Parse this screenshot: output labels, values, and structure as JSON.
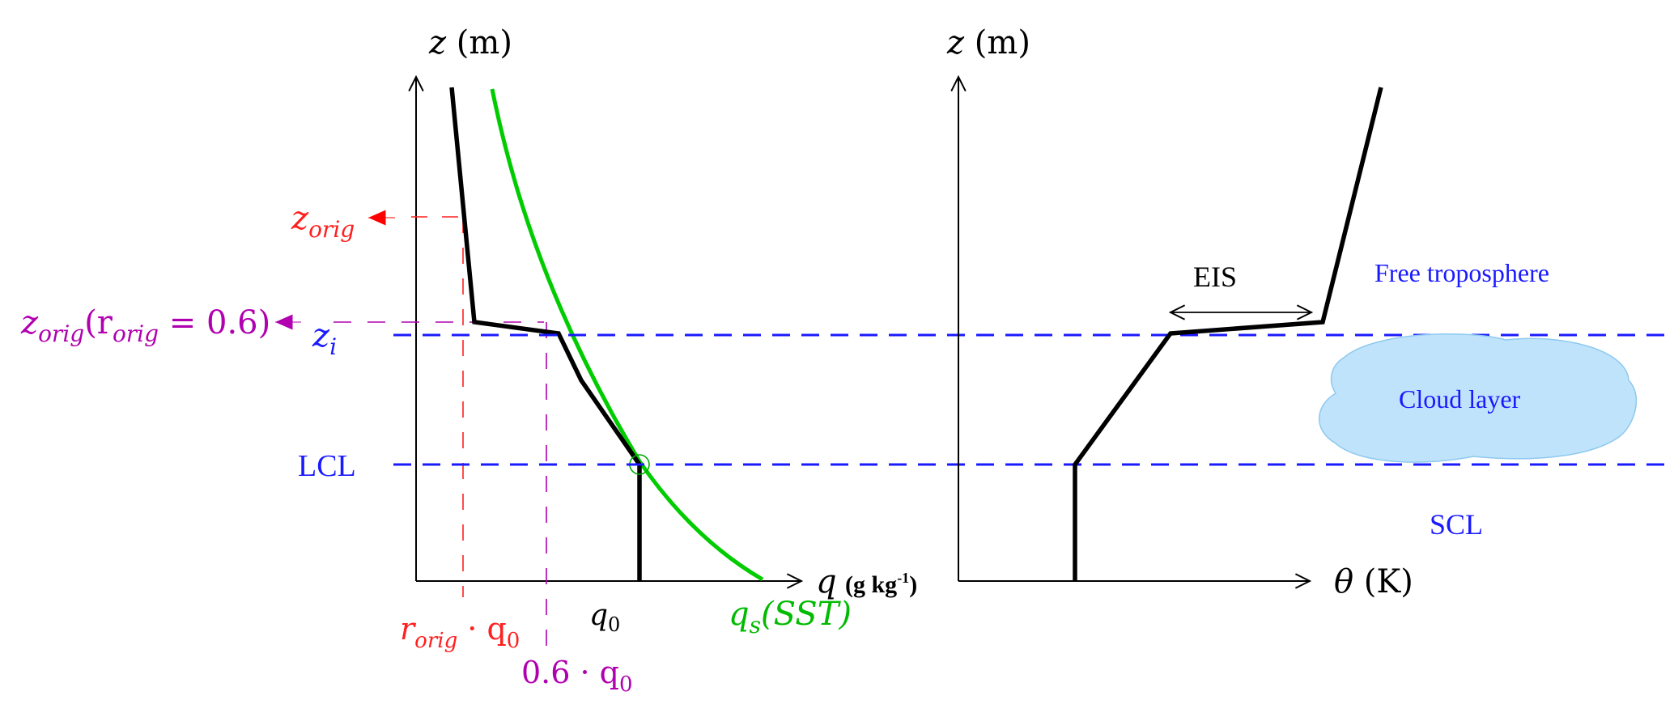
{
  "left_panel": {
    "y_axis_label": "z (m)",
    "x_axis_label_main": "q",
    "x_axis_label_unit": "(g kg",
    "x_axis_label_exp": "-1",
    "x_axis_label_close": ")",
    "label_z_orig": "z",
    "label_z_orig_sub": "orig",
    "label_z_orig_06_main": "z",
    "label_z_orig_06_sub": "orig",
    "label_z_orig_06_paren_open": "(r",
    "label_z_orig_06_sub2": "orig",
    "label_z_orig_06_rest": " = 0.6)",
    "label_zi": "z",
    "label_zi_sub": "i",
    "label_lcl": "LCL",
    "label_r_orig_q0_r": "r",
    "label_r_orig_q0_sub": "orig",
    "label_r_orig_q0_rest": " · q",
    "label_r_orig_q0_sub2": "0",
    "label_q0": "q",
    "label_q0_sub": "0",
    "label_06_q0": "0.6 · q",
    "label_06_q0_sub": "0",
    "label_qs": "q",
    "label_qs_sub": "s",
    "label_qs_rest": "(SST)"
  },
  "right_panel": {
    "y_axis_label": "z (m)",
    "x_axis_label_theta": "θ",
    "x_axis_label_unit": " (K)",
    "label_eis": "EIS",
    "label_free_troposphere": "Free troposphere",
    "label_cloud_layer": "Cloud layer",
    "label_scl": "SCL"
  },
  "colors": {
    "profile": "#000000",
    "saturation_curve": "#00cc00",
    "inversion_lines": "#1a1aff",
    "orig_markers": "#ff2020",
    "threshold_markers": "#b000b0",
    "cloud_fill": "#bfe3fb",
    "cloud_stroke": "#8ec9ef"
  }
}
